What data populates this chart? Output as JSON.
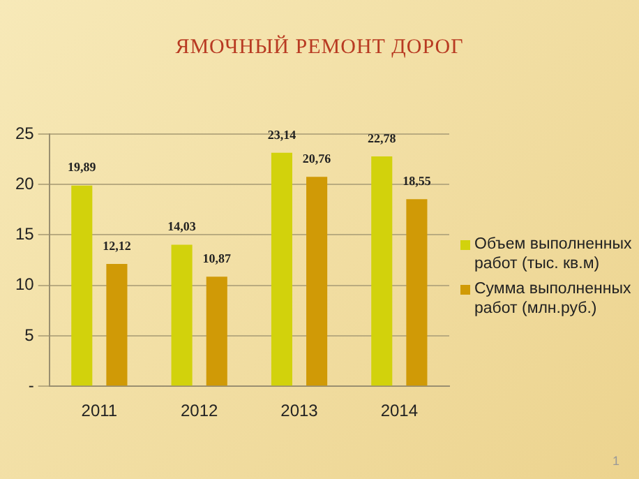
{
  "chart_data": {
    "type": "bar",
    "title": "ЯМОЧНЫЙ РЕМОНТ ДОРОГ",
    "categories": [
      "2011",
      "2012",
      "2013",
      "2014"
    ],
    "series": [
      {
        "name": "Объем выполненных работ (тыс. кв.м)",
        "color": "#d2d20c",
        "values": [
          19.89,
          14.03,
          23.14,
          22.78
        ],
        "value_labels": [
          "19,89",
          "14,03",
          "23,14",
          "22,78"
        ]
      },
      {
        "name": "Сумма выполненных работ (млн.руб.)",
        "color": "#d09a06",
        "values": [
          12.12,
          10.87,
          20.76,
          18.55
        ],
        "value_labels": [
          "12,12",
          "10,87",
          "20,76",
          "18,55"
        ]
      }
    ],
    "ylim": [
      0,
      25
    ],
    "yticks": [
      {
        "value": 0,
        "label": "-"
      },
      5,
      10,
      15,
      20,
      25
    ],
    "grid": "y",
    "legend": "right",
    "annotations": [
      "1"
    ]
  }
}
